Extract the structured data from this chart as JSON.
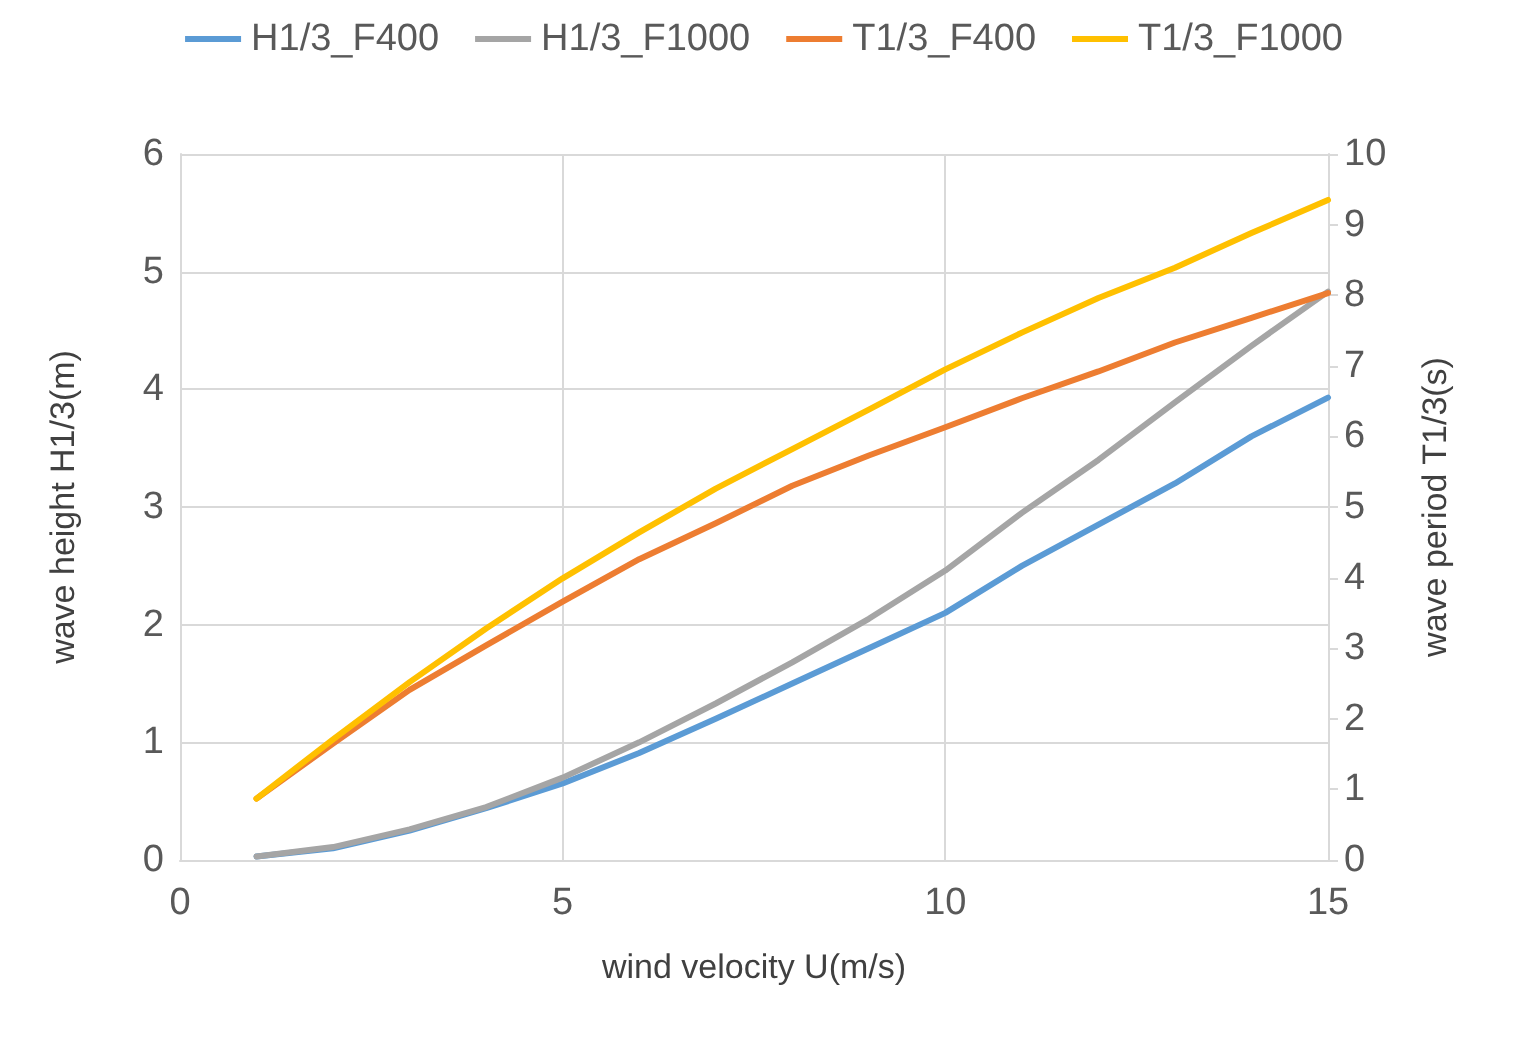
{
  "chart_data": {
    "type": "line",
    "xlabel": "wind velocity U(m/s)",
    "ylabel": "wave height H1/3(m)",
    "y2label": "wave period T1/3(s)",
    "x": [
      1,
      2,
      3,
      4,
      5,
      6,
      7,
      8,
      9,
      10,
      11,
      12,
      13,
      14,
      15
    ],
    "series": [
      {
        "name": "H1/3_F400",
        "color": "#5b9bd5",
        "values": [
          0.03,
          0.1,
          0.25,
          0.44,
          0.65,
          0.91,
          1.2,
          1.5,
          1.8,
          2.1,
          2.5,
          2.85,
          3.2,
          3.6,
          3.93
        ]
      },
      {
        "name": "H1/3_F1000",
        "color": "#a5a5a5",
        "values": [
          0.03,
          0.11,
          0.26,
          0.45,
          0.7,
          1.0,
          1.33,
          1.68,
          2.05,
          2.46,
          2.95,
          3.4,
          3.89,
          4.37,
          4.83
        ]
      },
      {
        "name": "T1/3_F400",
        "color": "#ed7d31",
        "axis": "y2",
        "values": [
          0.87,
          1.65,
          2.41,
          3.04,
          3.66,
          4.26,
          4.77,
          5.3,
          5.73,
          6.13,
          6.54,
          6.92,
          7.33,
          7.68,
          8.03
        ]
      },
      {
        "name": "T1/3_F1000",
        "color": "#ffc000",
        "axis": "y2",
        "values": [
          0.87,
          1.71,
          2.52,
          3.28,
          3.99,
          4.64,
          5.26,
          5.82,
          6.38,
          6.95,
          7.47,
          7.96,
          8.39,
          8.88,
          9.35
        ]
      }
    ],
    "xlim": [
      0,
      15
    ],
    "xticks": [
      0,
      5,
      10,
      15
    ],
    "ylim": [
      0,
      6
    ],
    "yticks": [
      0,
      1,
      2,
      3,
      4,
      5,
      6
    ],
    "y2lim": [
      0,
      10
    ],
    "y2ticks": [
      0,
      1,
      2,
      3,
      4,
      5,
      6,
      7,
      8,
      9,
      10
    ],
    "grid": true,
    "legend": "top",
    "marker": "none",
    "line_style": "solid"
  }
}
